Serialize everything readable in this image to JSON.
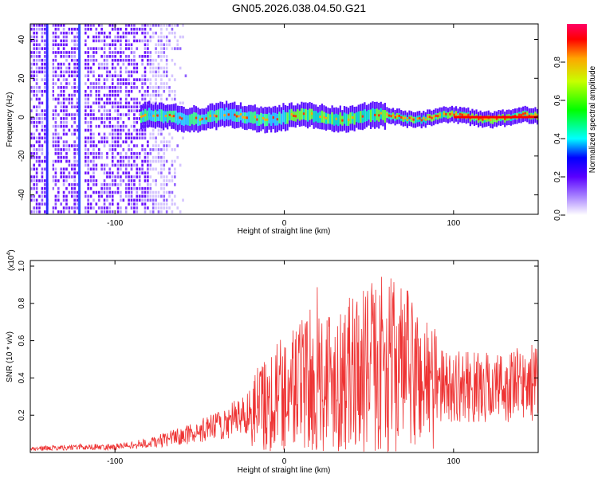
{
  "chart_data": [
    {
      "type": "heatmap",
      "title": "GN05.2026.038.04.50.G21",
      "xlabel": "Height of straight line (km)",
      "ylabel": "Frequency (Hz)",
      "xlim": [
        -150,
        150
      ],
      "ylim": [
        -50,
        48
      ],
      "xticks": [
        -100,
        0,
        100
      ],
      "yticks": [
        -40,
        -20,
        0,
        20,
        40
      ],
      "colorbar": {
        "label": "Normalized spectral amplitude",
        "range": [
          0.0,
          1.0
        ],
        "ticks": [
          "0.0",
          "0.2",
          "0.4",
          "0.6",
          "0.8"
        ],
        "colors": [
          "#ffffff",
          "#a680ff",
          "#5a00ff",
          "#0000ff",
          "#00ffff",
          "#00ff00",
          "#c8ff00",
          "#ffa500",
          "#ff0000",
          "#ff0066"
        ]
      },
      "ridge": {
        "description_freq_hz": 0,
        "start_km": -85,
        "end_km": 150
      },
      "noise_region_km": [
        -150,
        -70
      ],
      "vertical_traces_km": [
        -140,
        -121
      ]
    },
    {
      "type": "line",
      "xlabel": "Height of straight line (km)",
      "ylabel": "SNR (10 * v/v)",
      "scale_label": "(x10",
      "scale_exp": "4",
      "scale_close": ")",
      "xlim": [
        -150,
        150
      ],
      "ylim": [
        0,
        1.03
      ],
      "xticks": [
        -100,
        0,
        100
      ],
      "yticks": [
        "0.2",
        "0.4",
        "0.6",
        "0.8",
        "1.0"
      ],
      "series": [
        {
          "name": "SNR",
          "color": "#ee3333",
          "envelope_x": [
            -150,
            -120,
            -100,
            -80,
            -60,
            -40,
            -20,
            0,
            20,
            40,
            60,
            70,
            80,
            90,
            110,
            130,
            150
          ],
          "envelope_y": [
            0.02,
            0.03,
            0.03,
            0.05,
            0.09,
            0.14,
            0.22,
            0.33,
            0.4,
            0.42,
            0.48,
            0.45,
            0.4,
            0.36,
            0.35,
            0.35,
            0.38
          ]
        }
      ]
    }
  ]
}
